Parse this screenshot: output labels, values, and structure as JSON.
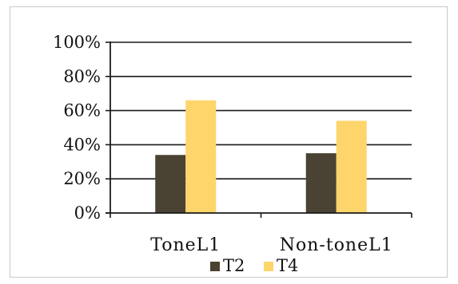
{
  "chart_data": {
    "type": "bar",
    "categories": [
      "ToneL1",
      "Non-toneL1"
    ],
    "series": [
      {
        "name": "T2",
        "values": [
          34,
          35
        ],
        "color": "#4a4232"
      },
      {
        "name": "T4",
        "values": [
          66,
          54
        ],
        "color": "#fdd56b"
      }
    ],
    "yticks": [
      "0%",
      "20%",
      "40%",
      "60%",
      "80%",
      "100%"
    ],
    "ylim": [
      0,
      100
    ],
    "grid": true,
    "legend": "bottom"
  }
}
